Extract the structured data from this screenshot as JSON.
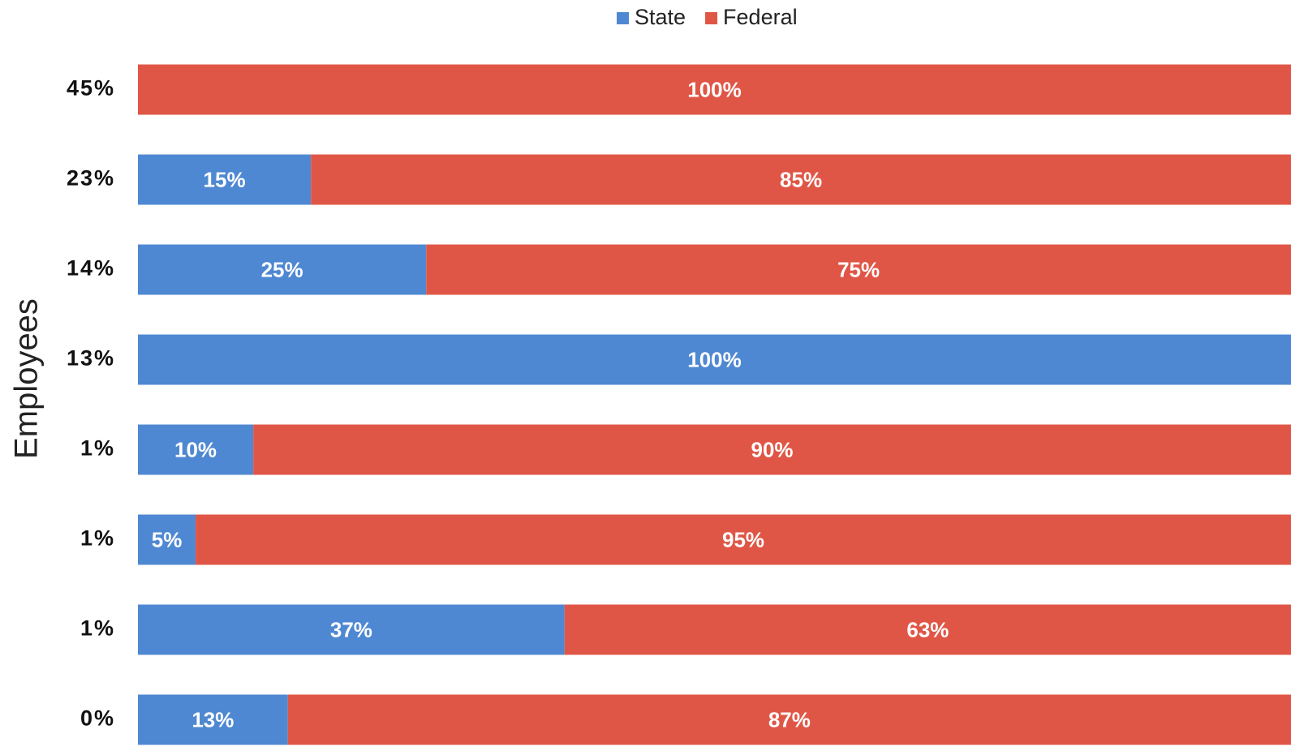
{
  "chart_data": {
    "type": "stacked_bar_horizontal",
    "y_axis_label": "Employees",
    "categories": [
      "45%",
      "23%",
      "14%",
      "13%",
      "1%",
      "1%",
      "1%",
      "0%"
    ],
    "series": [
      {
        "name": "State",
        "color": "#4f88d2",
        "values": [
          0,
          15,
          25,
          100,
          10,
          5,
          37,
          13
        ],
        "value_labels": [
          null,
          "15%",
          "25%",
          "100%",
          "10%",
          "5%",
          "37%",
          "13%"
        ]
      },
      {
        "name": "Federal",
        "color": "#e05646",
        "values": [
          100,
          85,
          75,
          0,
          90,
          95,
          63,
          87
        ],
        "value_labels": [
          "100%",
          "85%",
          "75%",
          null,
          "90%",
          "95%",
          "63%",
          "87%"
        ]
      }
    ],
    "xlim": [
      0,
      100
    ],
    "legend": "top"
  }
}
